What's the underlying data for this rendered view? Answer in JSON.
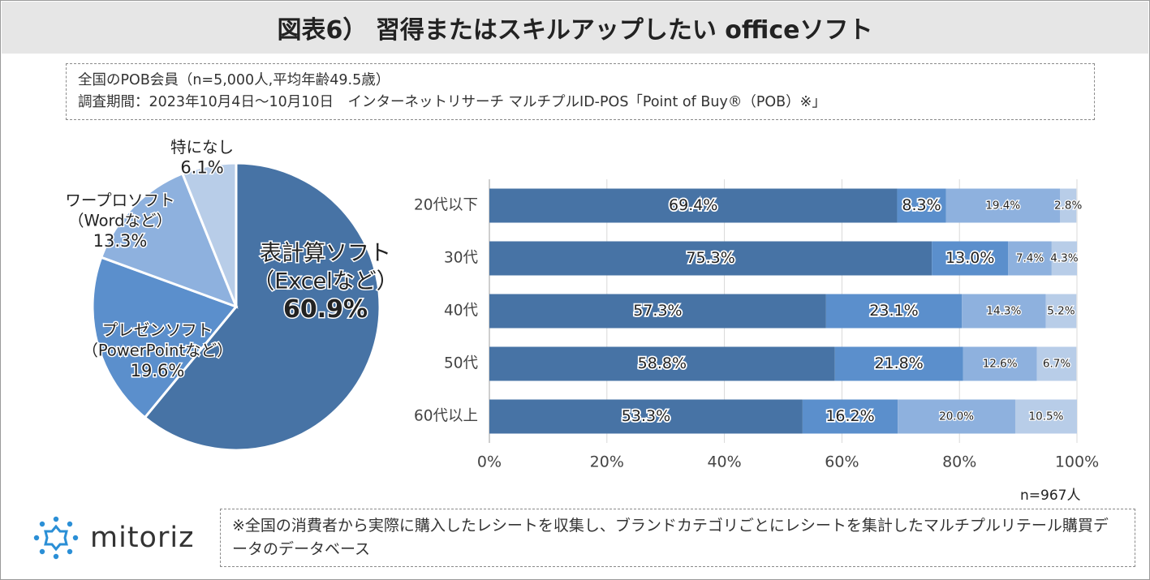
{
  "title": "図表6） 習得またはスキルアップしたい officeソフト",
  "info": {
    "line1": "全国のPOB会員（n=5,000人,平均年齢49.5歳）",
    "line2": "調査期間：2023年10月4日〜10月10日　インターネットリサーチ マルチプルID-POS「Point of Buy®（POB）※」"
  },
  "footnote": "※全国の消費者から実際に購入したレシートを収集し、ブランドカテゴリごとにレシートを集計したマルチプルリテール購買データのデータベース",
  "brand": {
    "name": "mitoriz",
    "icon": "sun-burst-logo-icon"
  },
  "colors": {
    "c1": "#4773a5",
    "c2": "#5b8fcc",
    "c3": "#8eb1de",
    "c4": "#b8cde8"
  },
  "chart_data": [
    {
      "type": "pie",
      "title": "",
      "slices": [
        {
          "name_lines": [
            "表計算ソフト",
            "（Excelなど）"
          ],
          "value": 60.9,
          "label": "60.9%"
        },
        {
          "name_lines": [
            "プレゼンソフト",
            "（PowerPointなど）"
          ],
          "value": 19.6,
          "label": "19.6%"
        },
        {
          "name_lines": [
            "ワープロソフト",
            "（Wordなど）"
          ],
          "value": 13.3,
          "label": "13.3%"
        },
        {
          "name_lines": [
            "特になし"
          ],
          "value": 6.1,
          "label": "6.1%"
        }
      ]
    },
    {
      "type": "bar",
      "orientation": "horizontal",
      "stacked": true,
      "percent": true,
      "categories": [
        "20代以下",
        "30代",
        "40代",
        "50代",
        "60代以上"
      ],
      "series": [
        {
          "name": "表計算ソフト（Excelなど）",
          "values": [
            69.4,
            75.3,
            57.3,
            58.8,
            53.3
          ]
        },
        {
          "name": "プレゼンソフト（PowerPointなど）",
          "values": [
            8.3,
            13.0,
            23.1,
            21.8,
            16.2
          ]
        },
        {
          "name": "ワープロソフト（Wordなど）",
          "values": [
            19.4,
            7.4,
            14.3,
            12.6,
            20.0
          ]
        },
        {
          "name": "特になし",
          "values": [
            2.8,
            4.3,
            5.2,
            6.7,
            10.5
          ]
        }
      ],
      "xlim": [
        0,
        100
      ],
      "xticks": [
        "0%",
        "20%",
        "40%",
        "60%",
        "80%",
        "100%"
      ],
      "sample_label": "n=967人"
    }
  ]
}
